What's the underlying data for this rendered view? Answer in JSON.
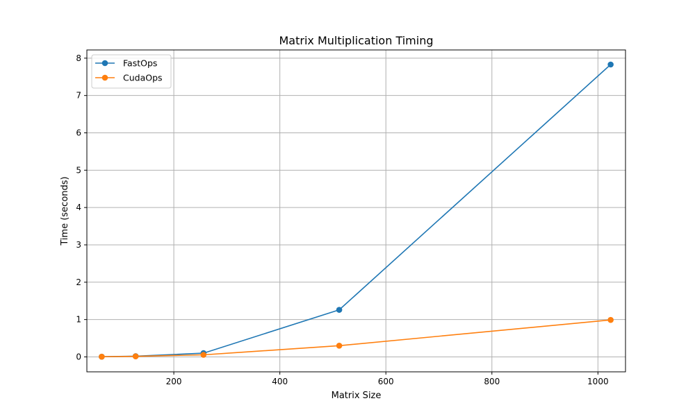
{
  "chart_data": {
    "type": "line",
    "title": "Matrix Multiplication Timing",
    "xlabel": "Matrix Size",
    "ylabel": "Time (seconds)",
    "xlim": [
      36,
      1052
    ],
    "ylim": [
      -0.4,
      8.22
    ],
    "xticks": [
      200,
      400,
      600,
      800,
      1000
    ],
    "yticks": [
      0,
      1,
      2,
      3,
      4,
      5,
      6,
      7,
      8
    ],
    "grid": true,
    "legend_position": "top-left",
    "series": [
      {
        "name": "FastOps",
        "color": "#1f77b4",
        "marker": "circle",
        "x": [
          64,
          128,
          256,
          512,
          1024
        ],
        "y": [
          0.005,
          0.02,
          0.1,
          1.26,
          7.83
        ]
      },
      {
        "name": "CudaOps",
        "color": "#ff7f0e",
        "marker": "circle",
        "x": [
          64,
          128,
          256,
          512,
          1024
        ],
        "y": [
          0.005,
          0.015,
          0.055,
          0.3,
          0.99
        ]
      }
    ]
  }
}
